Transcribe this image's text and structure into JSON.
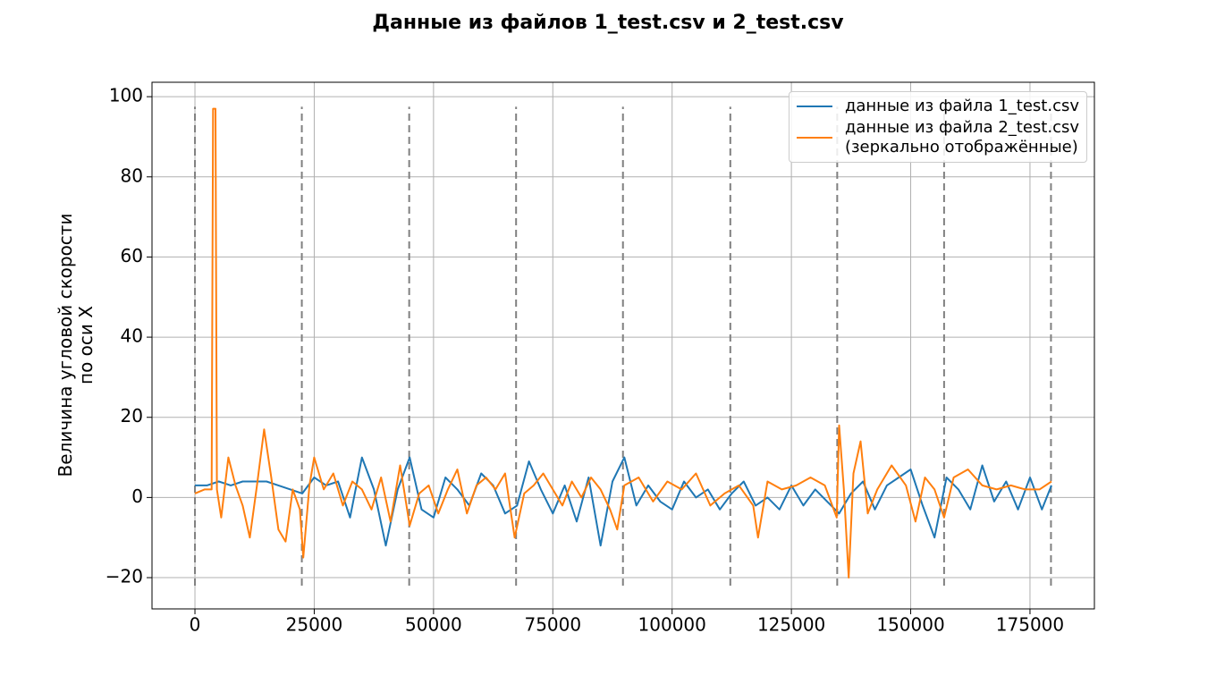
{
  "chart_data": {
    "type": "line",
    "title": "Данные из файлов 1_test.csv и 2_test.csv",
    "ylabel": "Величина угловой скорости\nпо оси X",
    "xlim": [
      -9000,
      188500
    ],
    "ylim": [
      -27.8,
      103.6
    ],
    "xticks": [
      0,
      25000,
      50000,
      75000,
      100000,
      125000,
      150000,
      175000
    ],
    "yticks": [
      {
        "value": -20,
        "label": "−20"
      },
      0,
      20,
      40,
      60,
      80,
      100
    ],
    "grid": true,
    "legend": "upper right",
    "vlines": {
      "x": [
        0,
        22400,
        44900,
        67300,
        89700,
        112200,
        134600,
        157000,
        179400
      ],
      "ymin": -22,
      "ymax": 97.5,
      "color": "#808080"
    },
    "series": [
      {
        "name": "данные из файла 1_test.csv",
        "color": "#1f77b4",
        "x": [
          0,
          2500,
          5000,
          7500,
          10000,
          12500,
          15000,
          17500,
          20000,
          22500,
          25000,
          27500,
          30000,
          32500,
          35000,
          37500,
          40000,
          42500,
          45000,
          47500,
          50000,
          52500,
          55000,
          57500,
          60000,
          62500,
          65000,
          67500,
          70000,
          72500,
          75000,
          77500,
          80000,
          82500,
          85000,
          87500,
          90000,
          92500,
          95000,
          97500,
          100000,
          102500,
          105000,
          107500,
          110000,
          112500,
          115000,
          117500,
          120000,
          122500,
          125000,
          127500,
          130000,
          132500,
          135000,
          137500,
          140000,
          142500,
          145000,
          147500,
          150000,
          152500,
          155000,
          157500,
          160000,
          162500,
          165000,
          167500,
          170000,
          172500,
          175000,
          177500,
          179500
        ],
        "values": [
          3,
          3,
          4,
          3,
          4,
          4,
          4,
          3,
          2,
          1,
          5,
          3,
          4,
          -5,
          10,
          2,
          -12,
          2,
          10,
          -3,
          -5,
          5,
          2,
          -2,
          6,
          3,
          -4,
          -2,
          9,
          2,
          -4,
          3,
          -6,
          5,
          -12,
          4,
          10,
          -2,
          3,
          -1,
          -3,
          4,
          0,
          2,
          -3,
          1,
          4,
          -2,
          0,
          -3,
          3,
          -2,
          2,
          -1,
          -4,
          1,
          4,
          -3,
          3,
          5,
          7,
          -2,
          -10,
          5,
          2,
          -3,
          8,
          -1,
          4,
          -3,
          5,
          -3,
          3
        ]
      },
      {
        "name": "данные из файла 2_test.csv\n(зеркально отображённые)",
        "color": "#ff7f0e",
        "x": [
          0,
          2000,
          3500,
          3800,
          4300,
          4600,
          5500,
          7000,
          8500,
          10000,
          11500,
          13000,
          14500,
          16000,
          17500,
          19000,
          20500,
          22000,
          22700,
          24000,
          25000,
          27000,
          29000,
          31000,
          33000,
          35000,
          37000,
          39000,
          41000,
          43000,
          45000,
          47000,
          49000,
          51000,
          53000,
          55000,
          57000,
          59000,
          61000,
          63000,
          65000,
          67000,
          69000,
          71000,
          73000,
          75000,
          77000,
          79000,
          81000,
          83000,
          85000,
          87000,
          88500,
          90000,
          93000,
          96000,
          99000,
          102000,
          105000,
          108000,
          111000,
          114000,
          117000,
          118000,
          120000,
          123000,
          126000,
          129000,
          132000,
          134500,
          135000,
          136000,
          137000,
          138000,
          139500,
          141000,
          143000,
          146000,
          149000,
          151000,
          153000,
          155000,
          157000,
          159000,
          162000,
          165000,
          168000,
          171000,
          174000,
          177000,
          179500
        ],
        "values": [
          1,
          2,
          2,
          97,
          97,
          2,
          -5,
          10,
          3,
          -2,
          -10,
          3,
          17,
          5,
          -8,
          -11,
          2,
          -3,
          -15,
          3,
          10,
          2,
          6,
          -2,
          4,
          2,
          -3,
          5,
          -6,
          8,
          -7,
          1,
          3,
          -4,
          2,
          7,
          -4,
          3,
          5,
          2,
          6,
          -10,
          1,
          3,
          6,
          2,
          -2,
          4,
          0,
          5,
          2,
          -3,
          -8,
          3,
          5,
          -1,
          4,
          2,
          6,
          -2,
          1,
          3,
          -2,
          -10,
          4,
          2,
          3,
          5,
          3,
          -5,
          18,
          2,
          -20,
          6,
          14,
          -4,
          2,
          8,
          3,
          -6,
          5,
          2,
          -5,
          5,
          7,
          3,
          2,
          3,
          2,
          2,
          4
        ]
      }
    ]
  }
}
